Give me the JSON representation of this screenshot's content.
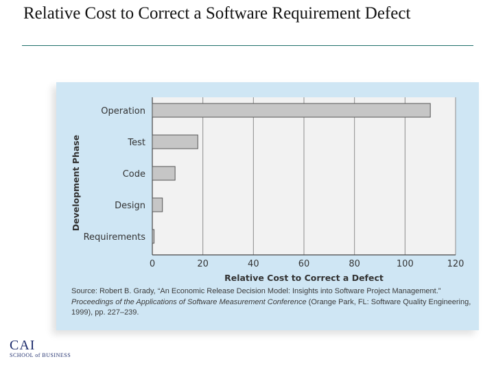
{
  "slide": {
    "title": "Relative Cost to Correct a Software Requirement Defect"
  },
  "chart_data": {
    "type": "bar",
    "orientation": "horizontal",
    "categories": [
      "Operation",
      "Test",
      "Code",
      "Design",
      "Requirements"
    ],
    "values": [
      110,
      18,
      9,
      4,
      0.7
    ],
    "xlabel": "Relative Cost to Correct a Defect",
    "ylabel": "Development Phase",
    "xlim": [
      0,
      120
    ],
    "xticks": [
      0,
      20,
      40,
      60,
      80,
      100,
      120
    ],
    "grid": "vertical",
    "bar_color": "#c6c6c6",
    "plot_background": "#f2f2f2",
    "figure_background": "#cfe6f4"
  },
  "source": {
    "prefix": "Source: Robert B. Grady, “An Economic Release Decision Model: Insights into Software Project Management.” ",
    "proceedings": "Proceedings of the Applications of Software Measurement Conference",
    "suffix": " (Orange Park, FL: Software Quality Engineering, 1999), pp. 227–239."
  },
  "logo": {
    "main": "CAI",
    "sub": "SCHOOL of BUSINESS"
  }
}
